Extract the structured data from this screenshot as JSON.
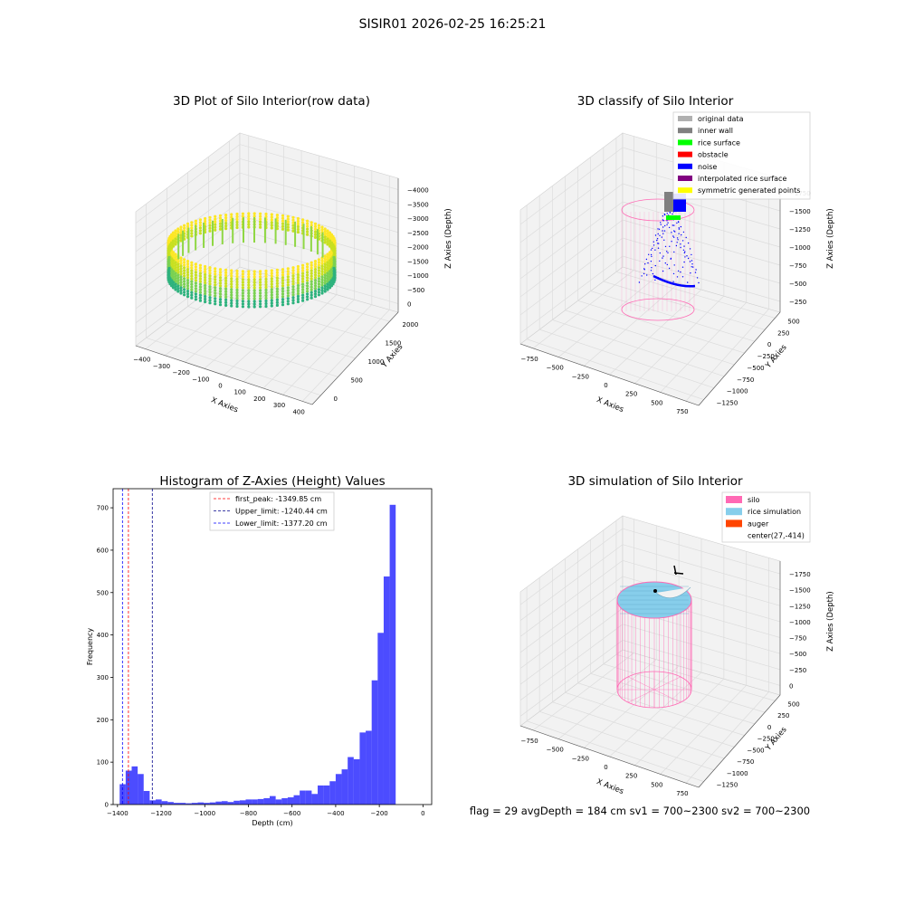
{
  "figure": {
    "suptitle": "SISIR01 2026-02-25 16:25:21",
    "footer": "flag = 29  avgDepth = 184 cm  sv1 = 700~2300  sv2 = 700~2300"
  },
  "colors": {
    "pane": "#f2f2f2",
    "grid": "#dcdcdc",
    "silo": "#ff69b4",
    "rice": "#87ceeb",
    "auger": "#ff4500",
    "hist": "#0000ff",
    "noise": "#0000ff",
    "rice_surface": "#00ff00",
    "inner_wall": "#808080",
    "original": "#b0b0b0",
    "obstacle": "#ff0000",
    "interpolated": "#800080",
    "symmetric": "#ffff00"
  },
  "chart_data": [
    {
      "type": "scatter",
      "title": "3D Plot of Silo Interior(row data)",
      "xlabel": "X Axies",
      "ylabel": "Y Axies",
      "zlabel": "Z Axies (Depth)",
      "xticks": [
        "−400",
        "−300",
        "−200",
        "−100",
        "0",
        "100",
        "200",
        "300",
        "400"
      ],
      "yticks": [
        "0",
        "500",
        "1000",
        "1500",
        "2000"
      ],
      "zticks": [
        "0",
        "−500",
        "−1000",
        "−1500",
        "−2000",
        "−2500",
        "−3000",
        "−3500",
        "−4000"
      ],
      "xlim": [
        -450,
        450
      ],
      "ylim": [
        -200,
        2200
      ],
      "zlim": [
        -4300,
        200
      ],
      "description": "ring of points colored by depth (viridis-like green to yellow)"
    },
    {
      "type": "scatter",
      "title": "3D classify of Silo Interior",
      "xlabel": "X Axies",
      "ylabel": "Y Axies",
      "zlabel": "Z Axies (Depth)",
      "xticks": [
        "−750",
        "−500",
        "−250",
        "0",
        "250",
        "500",
        "750"
      ],
      "yticks": [
        "−1250",
        "−1000",
        "−750",
        "−500",
        "−250",
        "0",
        "250",
        "500"
      ],
      "zticks": [
        "−250",
        "−500",
        "−750",
        "−1000",
        "−1250",
        "−1500",
        "−1750"
      ],
      "legend_position": "top-right",
      "legend": [
        {
          "label": "original data",
          "color": "#b0b0b0"
        },
        {
          "label": "inner wall",
          "color": "#808080"
        },
        {
          "label": "rice surface",
          "color": "#00ff00"
        },
        {
          "label": "obstacle",
          "color": "#ff0000"
        },
        {
          "label": "noise",
          "color": "#0000ff"
        },
        {
          "label": "interpolated rice surface",
          "color": "#800080"
        },
        {
          "label": "symmetric generated points",
          "color": "#ffff00"
        }
      ]
    },
    {
      "type": "bar",
      "title": "Histogram of Z-Axies (Height) Values",
      "xlabel": "Depth (cm)",
      "ylabel": "Frequency",
      "xlim": [
        -1420,
        40
      ],
      "ylim": [
        0,
        745
      ],
      "xticks": [
        -1400,
        -1200,
        -1000,
        -800,
        -600,
        -400,
        -200,
        0
      ],
      "xtick_labels": [
        "−1400",
        "−1200",
        "−1000",
        "−800",
        "−600",
        "−400",
        "−200",
        "0"
      ],
      "yticks": [
        0,
        100,
        200,
        300,
        400,
        500,
        600,
        700
      ],
      "ytick_labels": [
        "0",
        "100",
        "200",
        "300",
        "400",
        "500",
        "600",
        "700"
      ],
      "bin_width": 27.5,
      "bin_start": -1390,
      "values": [
        48,
        80,
        90,
        72,
        32,
        10,
        12,
        8,
        6,
        4,
        4,
        3,
        4,
        5,
        4,
        5,
        7,
        8,
        6,
        9,
        10,
        12,
        12,
        13,
        15,
        20,
        12,
        15,
        17,
        22,
        33,
        33,
        25,
        45,
        45,
        55,
        72,
        83,
        112,
        107,
        170,
        174,
        293,
        405,
        538,
        707
      ],
      "vlines": [
        {
          "x": -1349.85,
          "color": "#ff0000",
          "label": "first_peak: -1349.85 cm"
        },
        {
          "x": -1240.44,
          "color": "#00008b",
          "label": "Upper_limit: -1240.44 cm"
        },
        {
          "x": -1377.2,
          "color": "#0000ff",
          "label": "Lower_limit: -1377.20 cm"
        }
      ],
      "legend_position": "top-center"
    },
    {
      "type": "scatter",
      "title": "3D simulation of Silo Interior",
      "xlabel": "X Axies",
      "ylabel": "Y Axies",
      "zlabel": "Z Axies (Depth)",
      "xticks": [
        "−750",
        "−500",
        "−250",
        "0",
        "250",
        "500",
        "750"
      ],
      "yticks": [
        "−1250",
        "−1000",
        "−750",
        "−500",
        "−250",
        "0",
        "250",
        "500"
      ],
      "zticks": [
        "0",
        "−250",
        "−500",
        "−750",
        "−1000",
        "−1250",
        "−1500",
        "−1750"
      ],
      "legend_position": "top-right",
      "legend": [
        {
          "label": "silo",
          "color": "#ff69b4"
        },
        {
          "label": "rice simulation",
          "color": "#87ceeb"
        },
        {
          "label": "auger",
          "color": "#ff4500"
        },
        {
          "label": "center(27,-414)",
          "color": ""
        }
      ]
    }
  ]
}
